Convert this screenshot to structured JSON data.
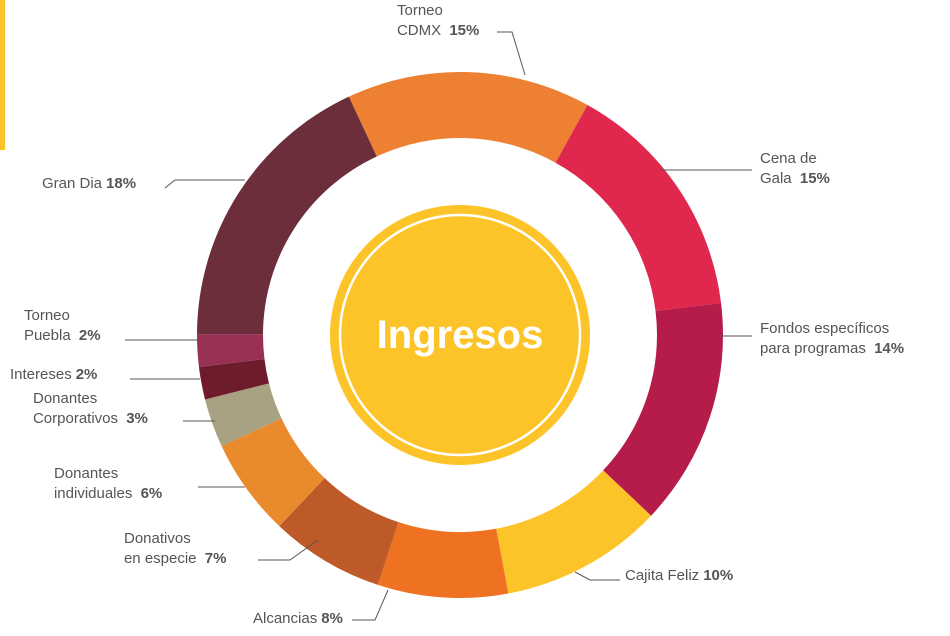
{
  "chart_data": {
    "type": "donut",
    "title": "Ingresos",
    "categories": [
      "Torneo CDMX",
      "Cena de Gala",
      "Fondos específicos para programas",
      "Cajita Feliz",
      "Alcancias",
      "Donativos en especie",
      "Donantes individuales",
      "Donantes Corporativos",
      "Intereses",
      "Torneo Puebla",
      "Gran Dia"
    ],
    "values": [
      15,
      15,
      14,
      10,
      8,
      7,
      6,
      3,
      2,
      2,
      18
    ],
    "value_labels": [
      "15%",
      "15%",
      "14%",
      "10%",
      "8%",
      "7%",
      "6%",
      "3%",
      "2%",
      "2%",
      "18%"
    ],
    "colors": [
      "#ee8033",
      "#e0284f",
      "#b51c49",
      "#fdc42a",
      "#ef7222",
      "#bd5a27",
      "#e98b2d",
      "#a9a282",
      "#6e1b2c",
      "#983154",
      "#6b2e3a"
    ]
  }
}
